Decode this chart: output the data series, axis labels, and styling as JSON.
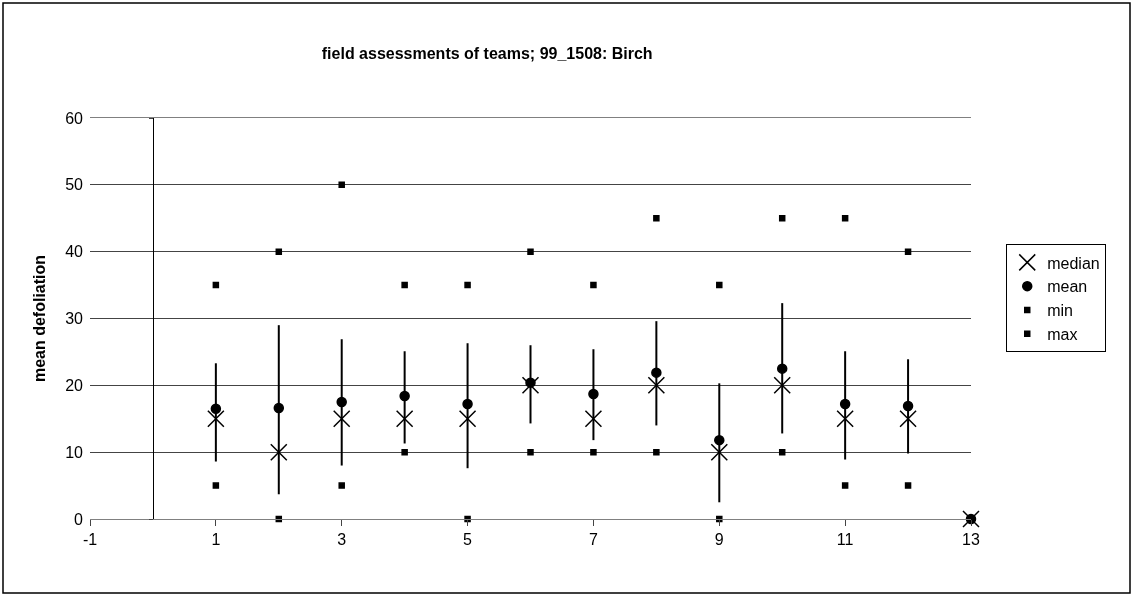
{
  "chart_data": {
    "type": "scatter",
    "title": "field assessments of teams; 99_1508: Birch",
    "ylabel": "mean defoliation",
    "x": [
      1,
      2,
      3,
      4,
      5,
      6,
      7,
      8,
      9,
      10,
      11,
      12,
      13
    ],
    "series": [
      {
        "name": "median",
        "color": "#000000",
        "marker": "cross",
        "values": [
          15,
          10,
          15,
          15,
          15,
          20,
          15,
          20,
          10,
          20,
          15,
          15,
          0
        ]
      },
      {
        "name": "mean",
        "color": "#000000",
        "marker": "circle",
        "values": [
          16.5,
          16.6,
          17.5,
          18.4,
          17.2,
          20.4,
          18.7,
          21.9,
          11.8,
          22.5,
          17.2,
          16.9,
          0
        ],
        "errors": [
          [
            8.6,
            23.3
          ],
          [
            3.7,
            29.0
          ],
          [
            8.0,
            26.9
          ],
          [
            11.3,
            25.1
          ],
          [
            7.6,
            26.3
          ],
          [
            14.3,
            26.0
          ],
          [
            11.8,
            25.4
          ],
          [
            14.0,
            29.6
          ],
          [
            2.5,
            20.3
          ],
          [
            12.8,
            32.3
          ],
          [
            8.9,
            25.1
          ],
          [
            9.8,
            23.9
          ],
          null
        ]
      },
      {
        "name": "min",
        "color": "#000000",
        "marker": "square",
        "values": [
          5,
          0,
          5,
          10,
          0,
          10,
          10,
          10,
          0,
          10,
          5,
          5,
          null
        ]
      },
      {
        "name": "max",
        "color": "#000000",
        "marker": "square",
        "values": [
          35,
          40,
          50,
          35,
          35,
          40,
          35,
          45,
          35,
          45,
          45,
          40,
          null
        ]
      }
    ],
    "xlim": [
      -1,
      13
    ],
    "xticks": [
      -1,
      1,
      3,
      5,
      7,
      9,
      11,
      13
    ],
    "ylim": [
      0,
      60
    ],
    "yticks": [
      0,
      10,
      20,
      30,
      40,
      50,
      60
    ],
    "grid": "y",
    "legend": "right"
  }
}
